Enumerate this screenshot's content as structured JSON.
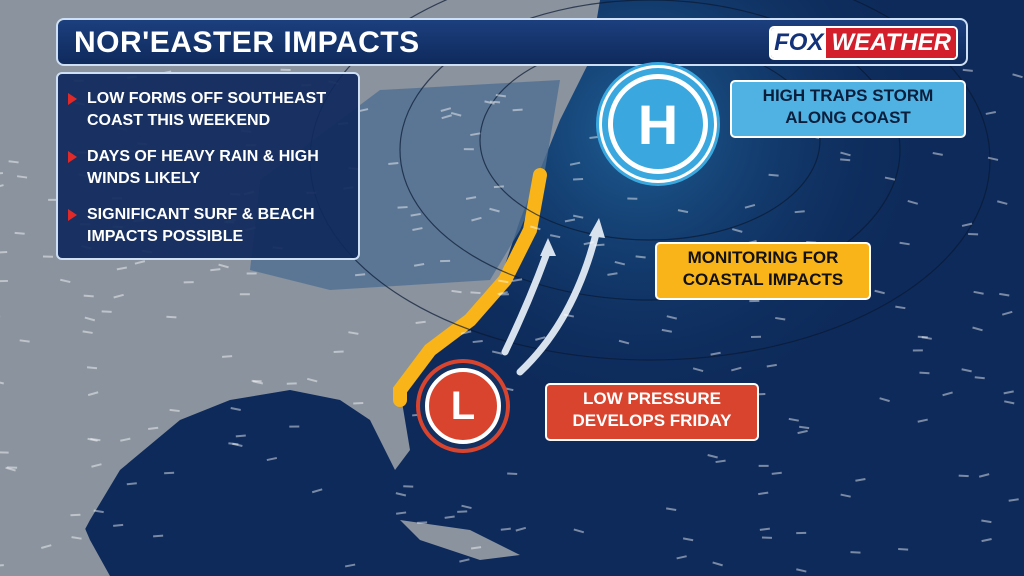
{
  "header": {
    "title": "NOR'EASTER IMPACTS"
  },
  "logo": {
    "part1": "FOX",
    "part2": "WEATHER"
  },
  "bullets": [
    "LOW FORMS OFF SOUTHEAST COAST THIS WEEKEND",
    "DAYS OF HEAVY RAIN & HIGH WINDS LIKELY",
    "SIGNIFICANT SURF & BEACH IMPACTS POSSIBLE"
  ],
  "high": {
    "symbol": "H",
    "label": "HIGH TRAPS STORM ALONG COAST",
    "color": "#4fb2e3"
  },
  "monitor": {
    "label": "MONITORING FOR COASTAL IMPACTS",
    "color": "#f8b418"
  },
  "low": {
    "symbol": "L",
    "label": "LOW PRESSURE DEVELOPS FRIDAY",
    "color": "#d9442e"
  },
  "colors": {
    "ocean": "#0d2a5a",
    "land": "#8a939e",
    "coast_highlight": "#f8b418"
  }
}
